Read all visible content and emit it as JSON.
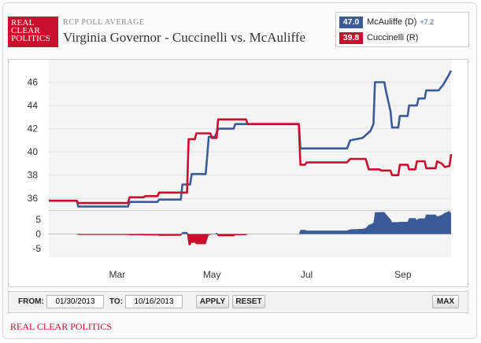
{
  "logo": {
    "line1": "REAL",
    "line2": "CLEAR",
    "line3": "POLITICS"
  },
  "header": {
    "kicker": "RCP POLL AVERAGE",
    "title": "Virginia Governor - Cuccinelli vs. McAuliffe"
  },
  "legend": {
    "items": [
      {
        "value": "47.0",
        "name": "McAuliffe (D)",
        "change": "+7.2",
        "color": "#3a5a98"
      },
      {
        "value": "39.8",
        "name": "Cuccinelli (R)",
        "change": "",
        "color": "#c8102e"
      }
    ]
  },
  "controls": {
    "from_label": "FROM:",
    "from_value": "01/30/2013",
    "to_label": "TO:",
    "to_value": "10/16/2013",
    "apply_label": "APPLY",
    "reset_label": "RESET",
    "max_label": "MAX"
  },
  "footer": {
    "text": "REAL CLEAR POLITICS"
  },
  "chart_data": {
    "type": "line",
    "x_unit": "date (2013)",
    "x_ticks": [
      {
        "label": "Mar",
        "date": "2013-03-15"
      },
      {
        "label": "May",
        "date": "2013-05-15"
      },
      {
        "label": "Jul",
        "date": "2013-07-15"
      },
      {
        "label": "Sep",
        "date": "2013-09-15"
      }
    ],
    "xlim": [
      "2013-01-30",
      "2013-10-16"
    ],
    "main_panel": {
      "ylim": [
        35,
        48
      ],
      "y_ticks": [
        36,
        38,
        40,
        42,
        44,
        46
      ],
      "grid": true
    },
    "spread_panel": {
      "ylim": [
        -8,
        8
      ],
      "y_ticks": [
        5,
        0,
        -5
      ],
      "series_name": "spread"
    },
    "series": [
      {
        "name": "McAuliffe (D)",
        "color": "#3a5a98",
        "points": [
          [
            "2013-01-30",
            35.8
          ],
          [
            "2013-02-17",
            35.8
          ],
          [
            "2013-02-18",
            35.3
          ],
          [
            "2013-03-22",
            35.3
          ],
          [
            "2013-03-23",
            35.7
          ],
          [
            "2013-04-10",
            35.7
          ],
          [
            "2013-04-11",
            35.9
          ],
          [
            "2013-04-25",
            35.9
          ],
          [
            "2013-04-26",
            37.2
          ],
          [
            "2013-05-01",
            37.2
          ],
          [
            "2013-05-02",
            38.1
          ],
          [
            "2013-05-11",
            38.1
          ],
          [
            "2013-05-13",
            41.3
          ],
          [
            "2013-05-17",
            41.3
          ],
          [
            "2013-05-19",
            42.0
          ],
          [
            "2013-05-29",
            42.0
          ],
          [
            "2013-05-30",
            42.4
          ],
          [
            "2013-07-10",
            42.4
          ],
          [
            "2013-07-11",
            40.3
          ],
          [
            "2013-08-10",
            40.3
          ],
          [
            "2013-08-12",
            41.0
          ],
          [
            "2013-08-20",
            41.2
          ],
          [
            "2013-08-25",
            41.8
          ],
          [
            "2013-08-27",
            42.4
          ],
          [
            "2013-08-28",
            46.0
          ],
          [
            "2013-09-03",
            46.0
          ],
          [
            "2013-09-04",
            45.3
          ],
          [
            "2013-09-07",
            43.5
          ],
          [
            "2013-09-08",
            42.1
          ],
          [
            "2013-09-12",
            42.1
          ],
          [
            "2013-09-13",
            43.1
          ],
          [
            "2013-09-18",
            43.1
          ],
          [
            "2013-09-19",
            44.0
          ],
          [
            "2013-09-24",
            44.0
          ],
          [
            "2013-09-25",
            44.6
          ],
          [
            "2013-09-29",
            44.6
          ],
          [
            "2013-09-30",
            45.3
          ],
          [
            "2013-10-08",
            45.3
          ],
          [
            "2013-10-11",
            45.8
          ],
          [
            "2013-10-14",
            46.5
          ],
          [
            "2013-10-16",
            47.0
          ]
        ]
      },
      {
        "name": "Cuccinelli (R)",
        "color": "#c8102e",
        "points": [
          [
            "2013-01-30",
            35.8
          ],
          [
            "2013-02-17",
            35.8
          ],
          [
            "2013-02-18",
            35.6
          ],
          [
            "2013-03-22",
            35.6
          ],
          [
            "2013-03-23",
            36.1
          ],
          [
            "2013-04-01",
            36.1
          ],
          [
            "2013-04-02",
            36.2
          ],
          [
            "2013-04-10",
            36.2
          ],
          [
            "2013-04-11",
            36.5
          ],
          [
            "2013-04-29",
            36.5
          ],
          [
            "2013-04-30",
            41.1
          ],
          [
            "2013-05-04",
            41.1
          ],
          [
            "2013-05-05",
            41.6
          ],
          [
            "2013-05-14",
            41.6
          ],
          [
            "2013-05-15",
            41.2
          ],
          [
            "2013-05-18",
            41.2
          ],
          [
            "2013-05-19",
            42.8
          ],
          [
            "2013-06-06",
            42.8
          ],
          [
            "2013-06-07",
            42.4
          ],
          [
            "2013-07-10",
            42.4
          ],
          [
            "2013-07-11",
            38.9
          ],
          [
            "2013-07-14",
            38.9
          ],
          [
            "2013-07-15",
            39.1
          ],
          [
            "2013-08-10",
            39.1
          ],
          [
            "2013-08-12",
            39.4
          ],
          [
            "2013-08-22",
            39.4
          ],
          [
            "2013-08-24",
            38.5
          ],
          [
            "2013-08-31",
            38.5
          ],
          [
            "2013-09-01",
            38.4
          ],
          [
            "2013-09-07",
            38.4
          ],
          [
            "2013-09-08",
            38.0
          ],
          [
            "2013-09-12",
            38.0
          ],
          [
            "2013-09-13",
            38.9
          ],
          [
            "2013-09-18",
            38.9
          ],
          [
            "2013-09-19",
            38.5
          ],
          [
            "2013-09-23",
            38.5
          ],
          [
            "2013-09-24",
            39.2
          ],
          [
            "2013-09-29",
            39.2
          ],
          [
            "2013-09-30",
            38.6
          ],
          [
            "2013-10-06",
            38.6
          ],
          [
            "2013-10-07",
            39.2
          ],
          [
            "2013-10-10",
            39.0
          ],
          [
            "2013-10-12",
            38.7
          ],
          [
            "2013-10-15",
            38.8
          ],
          [
            "2013-10-16",
            39.8
          ]
        ]
      }
    ]
  }
}
